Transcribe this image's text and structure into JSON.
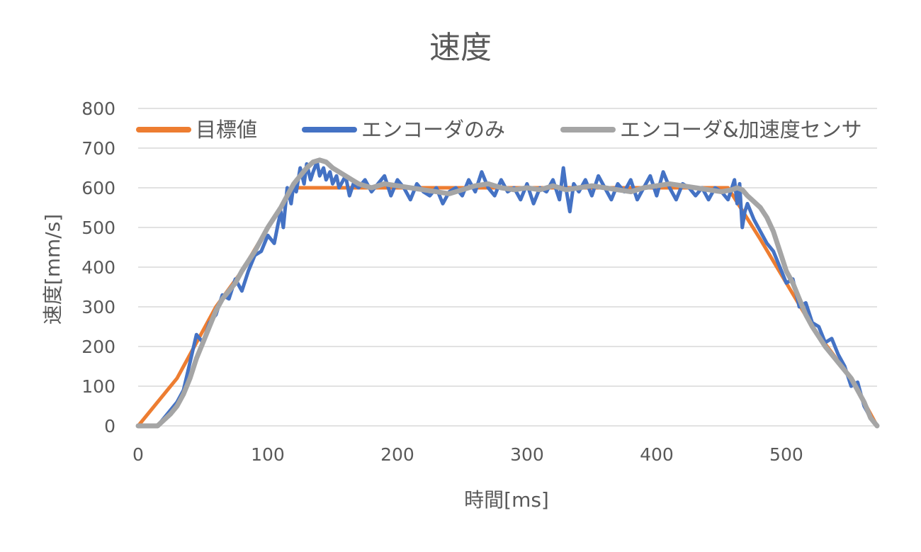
{
  "chart_data": {
    "type": "line",
    "title": "速度",
    "xlabel": "時間[ms]",
    "ylabel": "速度[mm/s]",
    "xlim": [
      0,
      570
    ],
    "ylim": [
      0,
      800
    ],
    "x_ticks": [
      "0",
      "100",
      "200",
      "300",
      "400",
      "500"
    ],
    "y_ticks": [
      "0",
      "100",
      "200",
      "300",
      "400",
      "500",
      "600",
      "700",
      "800"
    ],
    "grid": "horizontal",
    "legend_position": "top",
    "series": [
      {
        "name": "目標値",
        "color": "#ED7D31",
        "points": [
          [
            0,
            0
          ],
          [
            30,
            120
          ],
          [
            60,
            300
          ],
          [
            80,
            390
          ],
          [
            100,
            500
          ],
          [
            120,
            600
          ],
          [
            455,
            600
          ],
          [
            480,
            470
          ],
          [
            500,
            360
          ],
          [
            520,
            250
          ],
          [
            550,
            120
          ],
          [
            570,
            0
          ]
        ]
      },
      {
        "name": "エンコーダのみ",
        "color": "#4472C4",
        "points": [
          [
            0,
            0
          ],
          [
            15,
            0
          ],
          [
            20,
            20
          ],
          [
            30,
            60
          ],
          [
            35,
            90
          ],
          [
            40,
            160
          ],
          [
            45,
            230
          ],
          [
            50,
            210
          ],
          [
            55,
            260
          ],
          [
            60,
            280
          ],
          [
            65,
            330
          ],
          [
            70,
            320
          ],
          [
            75,
            370
          ],
          [
            80,
            340
          ],
          [
            85,
            390
          ],
          [
            90,
            430
          ],
          [
            95,
            440
          ],
          [
            100,
            480
          ],
          [
            105,
            460
          ],
          [
            108,
            510
          ],
          [
            110,
            540
          ],
          [
            112,
            500
          ],
          [
            115,
            600
          ],
          [
            118,
            560
          ],
          [
            120,
            610
          ],
          [
            122,
            590
          ],
          [
            125,
            650
          ],
          [
            128,
            610
          ],
          [
            130,
            660
          ],
          [
            133,
            620
          ],
          [
            135,
            640
          ],
          [
            138,
            665
          ],
          [
            140,
            630
          ],
          [
            143,
            650
          ],
          [
            145,
            620
          ],
          [
            148,
            640
          ],
          [
            150,
            610
          ],
          [
            153,
            630
          ],
          [
            155,
            600
          ],
          [
            160,
            630
          ],
          [
            163,
            580
          ],
          [
            166,
            610
          ],
          [
            170,
            600
          ],
          [
            175,
            620
          ],
          [
            180,
            590
          ],
          [
            185,
            610
          ],
          [
            190,
            630
          ],
          [
            195,
            580
          ],
          [
            200,
            620
          ],
          [
            205,
            600
          ],
          [
            210,
            570
          ],
          [
            215,
            610
          ],
          [
            220,
            590
          ],
          [
            225,
            580
          ],
          [
            230,
            600
          ],
          [
            235,
            560
          ],
          [
            240,
            590
          ],
          [
            245,
            600
          ],
          [
            250,
            580
          ],
          [
            255,
            620
          ],
          [
            260,
            590
          ],
          [
            265,
            640
          ],
          [
            270,
            600
          ],
          [
            275,
            580
          ],
          [
            280,
            620
          ],
          [
            285,
            590
          ],
          [
            290,
            600
          ],
          [
            295,
            570
          ],
          [
            300,
            610
          ],
          [
            305,
            560
          ],
          [
            310,
            600
          ],
          [
            315,
            590
          ],
          [
            320,
            620
          ],
          [
            325,
            570
          ],
          [
            328,
            650
          ],
          [
            330,
            600
          ],
          [
            333,
            540
          ],
          [
            336,
            610
          ],
          [
            340,
            590
          ],
          [
            345,
            620
          ],
          [
            350,
            580
          ],
          [
            355,
            630
          ],
          [
            360,
            600
          ],
          [
            365,
            570
          ],
          [
            370,
            610
          ],
          [
            375,
            590
          ],
          [
            380,
            620
          ],
          [
            385,
            570
          ],
          [
            390,
            600
          ],
          [
            395,
            630
          ],
          [
            400,
            580
          ],
          [
            405,
            640
          ],
          [
            410,
            600
          ],
          [
            415,
            570
          ],
          [
            420,
            610
          ],
          [
            425,
            600
          ],
          [
            430,
            580
          ],
          [
            435,
            600
          ],
          [
            440,
            570
          ],
          [
            445,
            600
          ],
          [
            450,
            590
          ],
          [
            455,
            570
          ],
          [
            458,
            600
          ],
          [
            460,
            620
          ],
          [
            462,
            560
          ],
          [
            464,
            610
          ],
          [
            466,
            500
          ],
          [
            468,
            540
          ],
          [
            470,
            560
          ],
          [
            475,
            520
          ],
          [
            480,
            490
          ],
          [
            485,
            460
          ],
          [
            490,
            440
          ],
          [
            495,
            400
          ],
          [
            500,
            360
          ],
          [
            505,
            370
          ],
          [
            510,
            300
          ],
          [
            515,
            310
          ],
          [
            520,
            260
          ],
          [
            525,
            250
          ],
          [
            530,
            210
          ],
          [
            535,
            220
          ],
          [
            540,
            180
          ],
          [
            545,
            150
          ],
          [
            550,
            100
          ],
          [
            555,
            110
          ],
          [
            560,
            50
          ],
          [
            565,
            20
          ],
          [
            570,
            0
          ]
        ]
      },
      {
        "name": "エンコーダ&加速度センサ",
        "color": "#A5A5A5",
        "points": [
          [
            0,
            0
          ],
          [
            15,
            0
          ],
          [
            20,
            15
          ],
          [
            25,
            30
          ],
          [
            30,
            50
          ],
          [
            35,
            80
          ],
          [
            40,
            120
          ],
          [
            45,
            170
          ],
          [
            50,
            210
          ],
          [
            55,
            250
          ],
          [
            60,
            290
          ],
          [
            65,
            320
          ],
          [
            70,
            340
          ],
          [
            75,
            360
          ],
          [
            80,
            390
          ],
          [
            90,
            440
          ],
          [
            100,
            500
          ],
          [
            110,
            550
          ],
          [
            115,
            580
          ],
          [
            120,
            610
          ],
          [
            125,
            630
          ],
          [
            130,
            650
          ],
          [
            135,
            665
          ],
          [
            140,
            670
          ],
          [
            145,
            665
          ],
          [
            150,
            650
          ],
          [
            155,
            640
          ],
          [
            160,
            630
          ],
          [
            165,
            620
          ],
          [
            170,
            610
          ],
          [
            180,
            600
          ],
          [
            190,
            610
          ],
          [
            200,
            605
          ],
          [
            210,
            600
          ],
          [
            220,
            595
          ],
          [
            230,
            590
          ],
          [
            240,
            585
          ],
          [
            250,
            595
          ],
          [
            260,
            605
          ],
          [
            270,
            610
          ],
          [
            280,
            600
          ],
          [
            290,
            595
          ],
          [
            300,
            600
          ],
          [
            310,
            595
          ],
          [
            320,
            605
          ],
          [
            330,
            595
          ],
          [
            340,
            600
          ],
          [
            350,
            605
          ],
          [
            360,
            600
          ],
          [
            370,
            595
          ],
          [
            380,
            590
          ],
          [
            390,
            600
          ],
          [
            400,
            605
          ],
          [
            410,
            610
          ],
          [
            420,
            605
          ],
          [
            430,
            600
          ],
          [
            440,
            595
          ],
          [
            450,
            590
          ],
          [
            458,
            595
          ],
          [
            462,
            600
          ],
          [
            466,
            595
          ],
          [
            470,
            580
          ],
          [
            475,
            565
          ],
          [
            480,
            550
          ],
          [
            485,
            525
          ],
          [
            490,
            490
          ],
          [
            495,
            440
          ],
          [
            500,
            390
          ],
          [
            505,
            360
          ],
          [
            510,
            320
          ],
          [
            515,
            280
          ],
          [
            520,
            250
          ],
          [
            525,
            225
          ],
          [
            530,
            200
          ],
          [
            540,
            160
          ],
          [
            550,
            120
          ],
          [
            560,
            60
          ],
          [
            565,
            20
          ],
          [
            570,
            0
          ]
        ]
      }
    ]
  }
}
